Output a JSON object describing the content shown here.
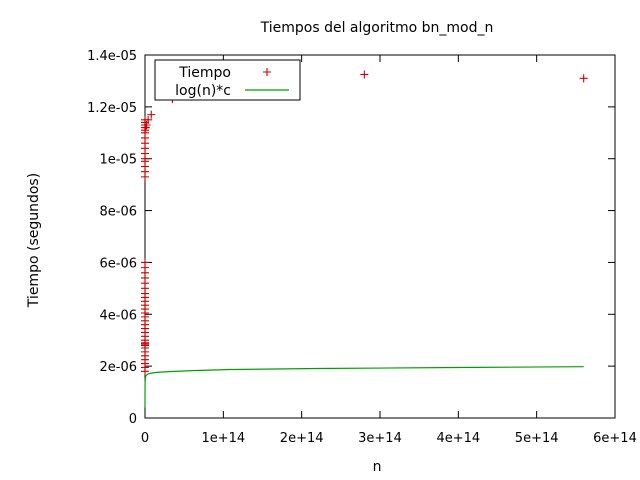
{
  "chart_data": {
    "type": "scatter",
    "title": "Tiempos del algoritmo bn_mod_n",
    "xlabel": "n",
    "ylabel": "Tiempo (segundos)",
    "xlim": [
      0,
      600000000000000.0
    ],
    "ylim": [
      0,
      1.4e-05
    ],
    "x_ticks": [
      {
        "value": 0,
        "label": "0"
      },
      {
        "value": 100000000000000.0,
        "label": "1e+14"
      },
      {
        "value": 200000000000000.0,
        "label": "2e+14"
      },
      {
        "value": 300000000000000.0,
        "label": "3e+14"
      },
      {
        "value": 400000000000000.0,
        "label": "4e+14"
      },
      {
        "value": 500000000000000.0,
        "label": "5e+14"
      },
      {
        "value": 600000000000000.0,
        "label": "6e+14"
      }
    ],
    "y_ticks": [
      {
        "value": 0,
        "label": "0"
      },
      {
        "value": 2e-06,
        "label": "2e-06"
      },
      {
        "value": 4e-06,
        "label": "4e-06"
      },
      {
        "value": 6e-06,
        "label": "6e-06"
      },
      {
        "value": 8e-06,
        "label": "8e-06"
      },
      {
        "value": 1e-05,
        "label": "1e-05"
      },
      {
        "value": 1.2e-05,
        "label": "1.2e-05"
      },
      {
        "value": 1.4e-05,
        "label": "1.4e-05"
      }
    ],
    "grid": false,
    "legend_position": "top-left",
    "series": [
      {
        "name": "Tiempo",
        "style": "points",
        "marker": "plus",
        "color": "#cc0000",
        "x": [
          0,
          0,
          0,
          0,
          0,
          0,
          0,
          0,
          0,
          0,
          0,
          0,
          0,
          0,
          0,
          0,
          0,
          0,
          0,
          0,
          0,
          0,
          0,
          0,
          0,
          0,
          0,
          0,
          0,
          0,
          0,
          0,
          0,
          0,
          0,
          0,
          0,
          0,
          0,
          0,
          0,
          0,
          0,
          0,
          1000000000000.0,
          2000000000000.0,
          4000000000000.0,
          8000000000000.0,
          35000000000000.0,
          70000000000000.0,
          140000000000000.0,
          280000000000000.0,
          560000000000000.0
        ],
        "y": [
          1.8e-06,
          1.95e-06,
          2.1e-06,
          2.25e-06,
          2.4e-06,
          2.55e-06,
          2.7e-06,
          2.85e-06,
          3e-06,
          3.15e-06,
          3.3e-06,
          3.45e-06,
          3.6e-06,
          3.75e-06,
          3.9e-06,
          4.05e-06,
          4.2e-06,
          4.35e-06,
          4.5e-06,
          4.65e-06,
          4.8e-06,
          5e-06,
          5.2e-06,
          5.4e-06,
          5.6e-06,
          5.8e-06,
          6e-06,
          9.3e-06,
          9.5e-06,
          9.7e-06,
          9.9e-06,
          1e-05,
          1.02e-05,
          1.04e-05,
          1.06e-05,
          1.08e-05,
          1.1e-05,
          1.11e-05,
          1.12e-05,
          1.13e-05,
          1.14e-05,
          1.15e-05,
          2.8e-06,
          2.9e-06,
          1.12e-05,
          1.13e-05,
          1.15e-05,
          1.17e-05,
          1.23e-05,
          1.265e-05,
          1.29e-05,
          1.325e-05,
          1.31e-05
        ]
      },
      {
        "name": "log(n)*c",
        "style": "line",
        "color": "#00a000",
        "x": [
          1000000.0,
          1000000000.0,
          100000000000.0,
          500000000000.0,
          1000000000000.0,
          2000000000000.0,
          4000000000000.0,
          8000000000000.0,
          15000000000000.0,
          30000000000000.0,
          60000000000000.0,
          110000000000000.0,
          220000000000000.0,
          420000000000000.0,
          560000000000000.0
        ],
        "y": [
          4e-07,
          8.5e-07,
          1.4e-06,
          1.55e-06,
          1.62e-06,
          1.66e-06,
          1.7e-06,
          1.73e-06,
          1.76e-06,
          1.79e-06,
          1.83e-06,
          1.87e-06,
          1.91e-06,
          1.95e-06,
          1.98e-06
        ]
      }
    ]
  }
}
